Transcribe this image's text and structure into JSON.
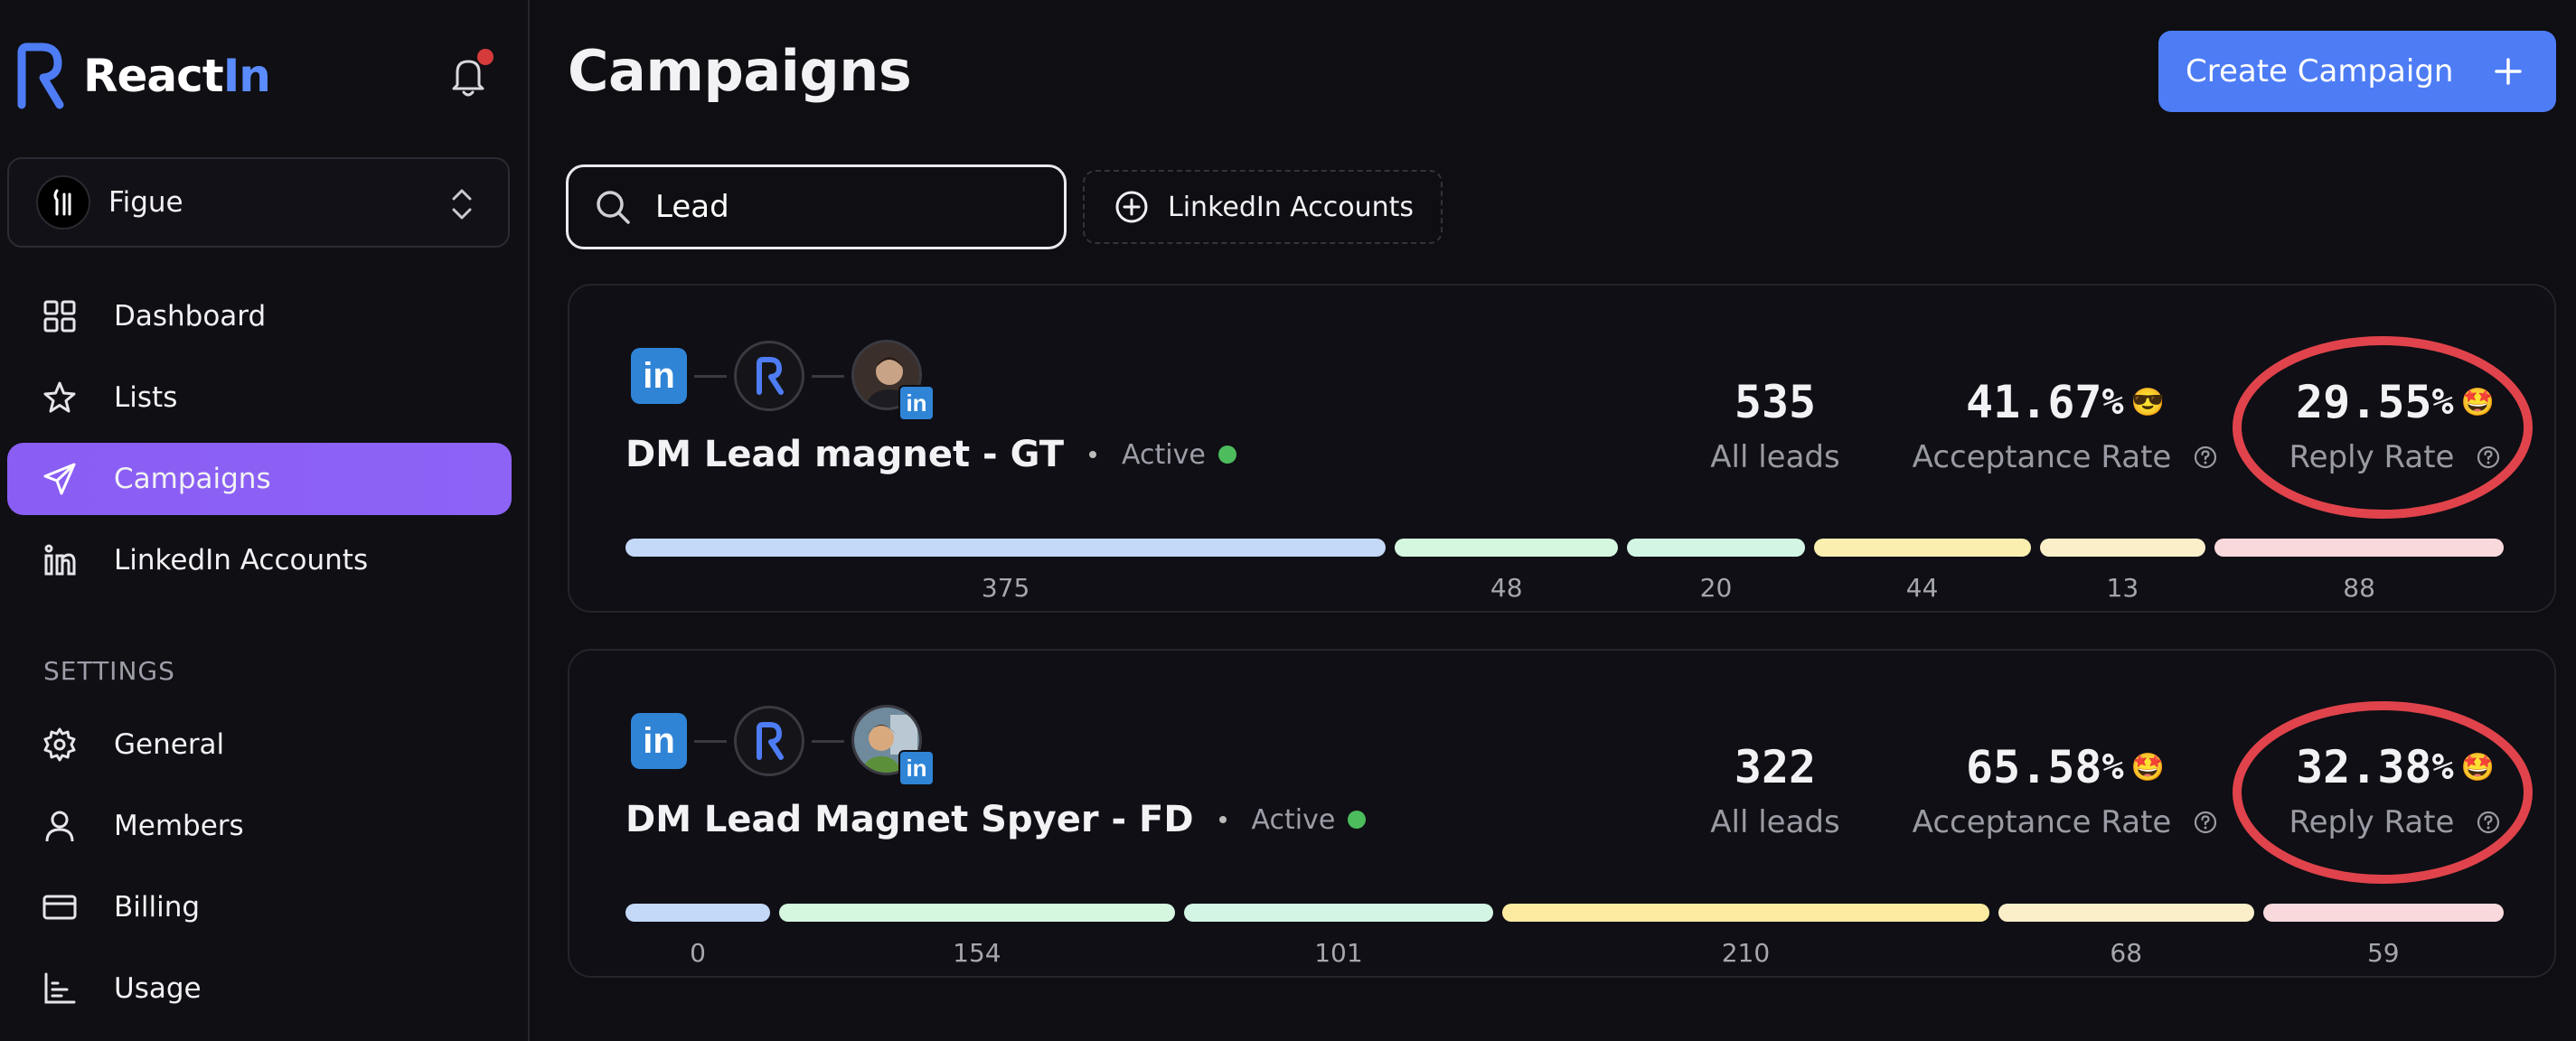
{
  "app": {
    "brand_react": "React",
    "brand_in": "In",
    "colors": {
      "accent": "#8b5cf6",
      "brand_blue": "#5b8cff",
      "primary_button": "#4d7cf5",
      "active_dot": "#4cbc5c",
      "notification": "#d63b3b"
    }
  },
  "workspace": {
    "name": "Figue"
  },
  "sidebar": {
    "items": [
      {
        "label": "Dashboard",
        "icon": "grid-icon"
      },
      {
        "label": "Lists",
        "icon": "star-icon"
      },
      {
        "label": "Campaigns",
        "icon": "send-icon",
        "active": true
      },
      {
        "label": "LinkedIn Accounts",
        "icon": "linkedin-icon"
      }
    ],
    "settings_label": "SETTINGS",
    "settings_items": [
      {
        "label": "General",
        "icon": "gear-icon"
      },
      {
        "label": "Members",
        "icon": "user-icon"
      },
      {
        "label": "Billing",
        "icon": "credit-card-icon"
      },
      {
        "label": "Usage",
        "icon": "chart-icon"
      }
    ]
  },
  "header": {
    "title": "Campaigns",
    "create_button": "Create Campaign"
  },
  "filters": {
    "search_value": "Lead",
    "accounts_button": "LinkedIn Accounts"
  },
  "campaigns": [
    {
      "name": "DM Lead magnet - GT",
      "status": "Active",
      "all_leads": "535",
      "all_leads_label": "All leads",
      "acceptance_value": "41.67",
      "acceptance_emoji": "😎",
      "acceptance_label": "Acceptance Rate",
      "reply_value": "29.55",
      "reply_emoji": "🤩",
      "reply_label": "Reply Rate",
      "pct": "%",
      "segments": [
        {
          "value": "375",
          "color": "#c4d8f8"
        },
        {
          "value": "48",
          "color": "#d6f7df"
        },
        {
          "value": "20",
          "color": "#d3f6e4"
        },
        {
          "value": "44",
          "color": "#fbefb0"
        },
        {
          "value": "13",
          "color": "#fbefc9"
        },
        {
          "value": "88",
          "color": "#fad9dd"
        }
      ]
    },
    {
      "name": "DM Lead Magnet Spyer - FD",
      "status": "Active",
      "all_leads": "322",
      "all_leads_label": "All leads",
      "acceptance_value": "65.58",
      "acceptance_emoji": "🤩",
      "acceptance_label": "Acceptance Rate",
      "reply_value": "32.38",
      "reply_emoji": "🤩",
      "reply_label": "Reply Rate",
      "pct": "%",
      "segments": [
        {
          "value": "0",
          "color": "#c4d8f8"
        },
        {
          "value": "154",
          "color": "#d6f7df"
        },
        {
          "value": "101",
          "color": "#d3f6e4"
        },
        {
          "value": "210",
          "color": "#fbeaa0"
        },
        {
          "value": "68",
          "color": "#fbefc9"
        },
        {
          "value": "59",
          "color": "#fad9dd"
        }
      ]
    }
  ]
}
